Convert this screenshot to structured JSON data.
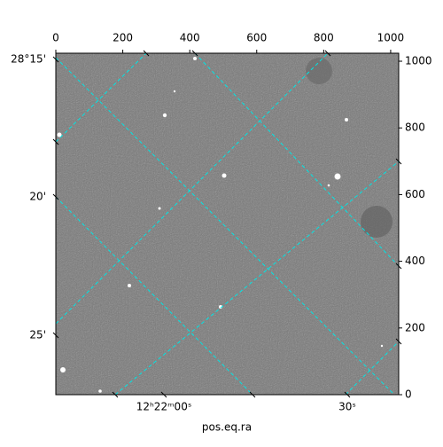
{
  "chart_data": {
    "type": "image",
    "xlabel": "pos.eq.ra",
    "xlim": [
      0,
      1024
    ],
    "xticks": [
      0,
      200,
      400,
      600,
      800,
      1000
    ],
    "ylim": [
      0,
      1024
    ],
    "yticks": [
      0,
      200,
      400,
      600,
      800,
      1000
    ],
    "dec_ticks": [
      "28°15'",
      "20'",
      "25'"
    ],
    "ra_ticks": [
      "12ʰ22ᵐ00ˢ",
      "30ˢ"
    ],
    "grid_color": "#00e5e5"
  }
}
